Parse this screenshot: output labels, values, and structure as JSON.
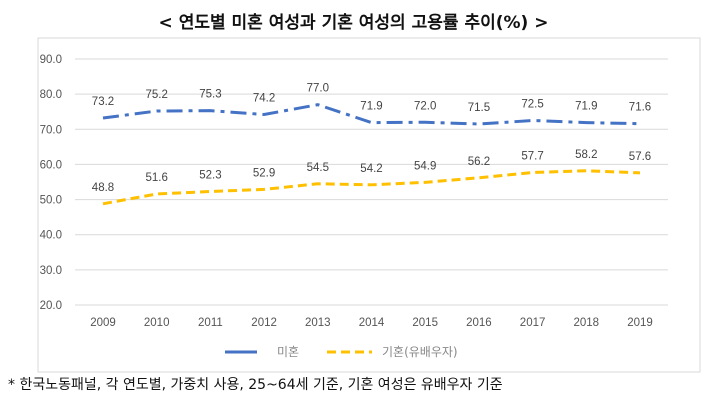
{
  "title": "< 연도별 미혼 여성과 기혼 여성의 고용률 추이(%) >",
  "footnote": "* 한국노동패널, 각 연도별, 가중치 사용,  25~64세 기준, 기혼 여성은 유배우자 기준",
  "chart_data": {
    "type": "line",
    "title": "< 연도별 미혼 여성과 기혼 여성의 고용률 추이(%) >",
    "x": [
      "2009",
      "2010",
      "2011",
      "2012",
      "2013",
      "2014",
      "2015",
      "2016",
      "2017",
      "2018",
      "2019"
    ],
    "ylim": [
      20,
      90
    ],
    "yticks": [
      "20.0",
      "30.0",
      "40.0",
      "50.0",
      "60.0",
      "70.0",
      "80.0",
      "90.0"
    ],
    "grid": true,
    "legend": "bottom",
    "series": [
      {
        "name": "미혼",
        "color": "#4472C4",
        "style": "dash-dot",
        "values": [
          73.2,
          75.2,
          75.3,
          74.2,
          77.0,
          71.9,
          72.0,
          71.5,
          72.5,
          71.9,
          71.6
        ],
        "labels": [
          "73.2",
          "75.2",
          "75.3",
          "74.2",
          "77.0",
          "71.9",
          "72.0",
          "71.5",
          "72.5",
          "71.9",
          "71.6"
        ]
      },
      {
        "name": "기혼(유배우자)",
        "color": "#FFC000",
        "style": "dashed",
        "values": [
          48.8,
          51.6,
          52.3,
          52.9,
          54.5,
          54.2,
          54.9,
          56.2,
          57.7,
          58.2,
          57.6
        ],
        "labels": [
          "48.8",
          "51.6",
          "52.3",
          "52.9",
          "54.5",
          "54.2",
          "54.9",
          "56.2",
          "57.7",
          "58.2",
          "57.6"
        ]
      }
    ]
  }
}
